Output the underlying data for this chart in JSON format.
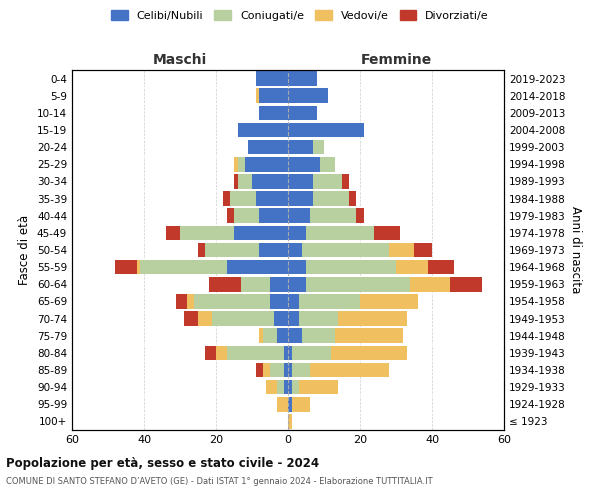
{
  "age_groups": [
    "100+",
    "95-99",
    "90-94",
    "85-89",
    "80-84",
    "75-79",
    "70-74",
    "65-69",
    "60-64",
    "55-59",
    "50-54",
    "45-49",
    "40-44",
    "35-39",
    "30-34",
    "25-29",
    "20-24",
    "15-19",
    "10-14",
    "5-9",
    "0-4"
  ],
  "birth_years": [
    "≤ 1923",
    "1924-1928",
    "1929-1933",
    "1934-1938",
    "1939-1943",
    "1944-1948",
    "1949-1953",
    "1954-1958",
    "1959-1963",
    "1964-1968",
    "1969-1973",
    "1974-1978",
    "1979-1983",
    "1984-1988",
    "1989-1993",
    "1994-1998",
    "1999-2003",
    "2004-2008",
    "2009-2013",
    "2014-2018",
    "2019-2023"
  ],
  "male": {
    "celibi": [
      0,
      0,
      1,
      1,
      1,
      3,
      4,
      5,
      5,
      17,
      8,
      15,
      8,
      9,
      10,
      12,
      11,
      14,
      8,
      8,
      9
    ],
    "coniugati": [
      0,
      0,
      2,
      4,
      16,
      4,
      17,
      21,
      8,
      24,
      15,
      15,
      7,
      7,
      4,
      2,
      0,
      0,
      0,
      0,
      0
    ],
    "vedovi": [
      0,
      3,
      3,
      2,
      3,
      1,
      4,
      2,
      0,
      1,
      0,
      0,
      0,
      0,
      0,
      1,
      0,
      0,
      0,
      1,
      0
    ],
    "divorziati": [
      0,
      0,
      0,
      2,
      3,
      0,
      4,
      3,
      9,
      6,
      2,
      4,
      2,
      2,
      1,
      0,
      0,
      0,
      0,
      0,
      0
    ]
  },
  "female": {
    "nubili": [
      0,
      1,
      1,
      1,
      1,
      4,
      3,
      3,
      5,
      5,
      4,
      5,
      6,
      7,
      7,
      9,
      7,
      21,
      8,
      11,
      8
    ],
    "coniugate": [
      0,
      0,
      2,
      5,
      11,
      9,
      11,
      17,
      29,
      25,
      24,
      19,
      13,
      10,
      8,
      4,
      3,
      0,
      0,
      0,
      0
    ],
    "vedove": [
      1,
      5,
      11,
      22,
      21,
      19,
      19,
      16,
      11,
      9,
      7,
      0,
      0,
      0,
      0,
      0,
      0,
      0,
      0,
      0,
      0
    ],
    "divorziate": [
      0,
      0,
      0,
      0,
      0,
      0,
      0,
      0,
      9,
      7,
      5,
      7,
      2,
      2,
      2,
      0,
      0,
      0,
      0,
      0,
      0
    ]
  },
  "colors": {
    "celibi_nubili": "#4472c4",
    "coniugati": "#b8cfa0",
    "vedovi": "#f0c060",
    "divorziati": "#c0392b"
  },
  "title": "Popolazione per età, sesso e stato civile - 2024",
  "subtitle": "COMUNE DI SANTO STEFANO D’AVETO (GE) - Dati ISTAT 1° gennaio 2024 - Elaborazione TUTTITALIA.IT",
  "xlabel_left": "Maschi",
  "xlabel_right": "Femmine",
  "ylabel_left": "Fasce di età",
  "ylabel_right": "Anni di nascita",
  "xlim": 60,
  "background_color": "#ffffff",
  "legend_labels": [
    "Celibi/Nubili",
    "Coniugati/e",
    "Vedovi/e",
    "Divorziati/e"
  ]
}
